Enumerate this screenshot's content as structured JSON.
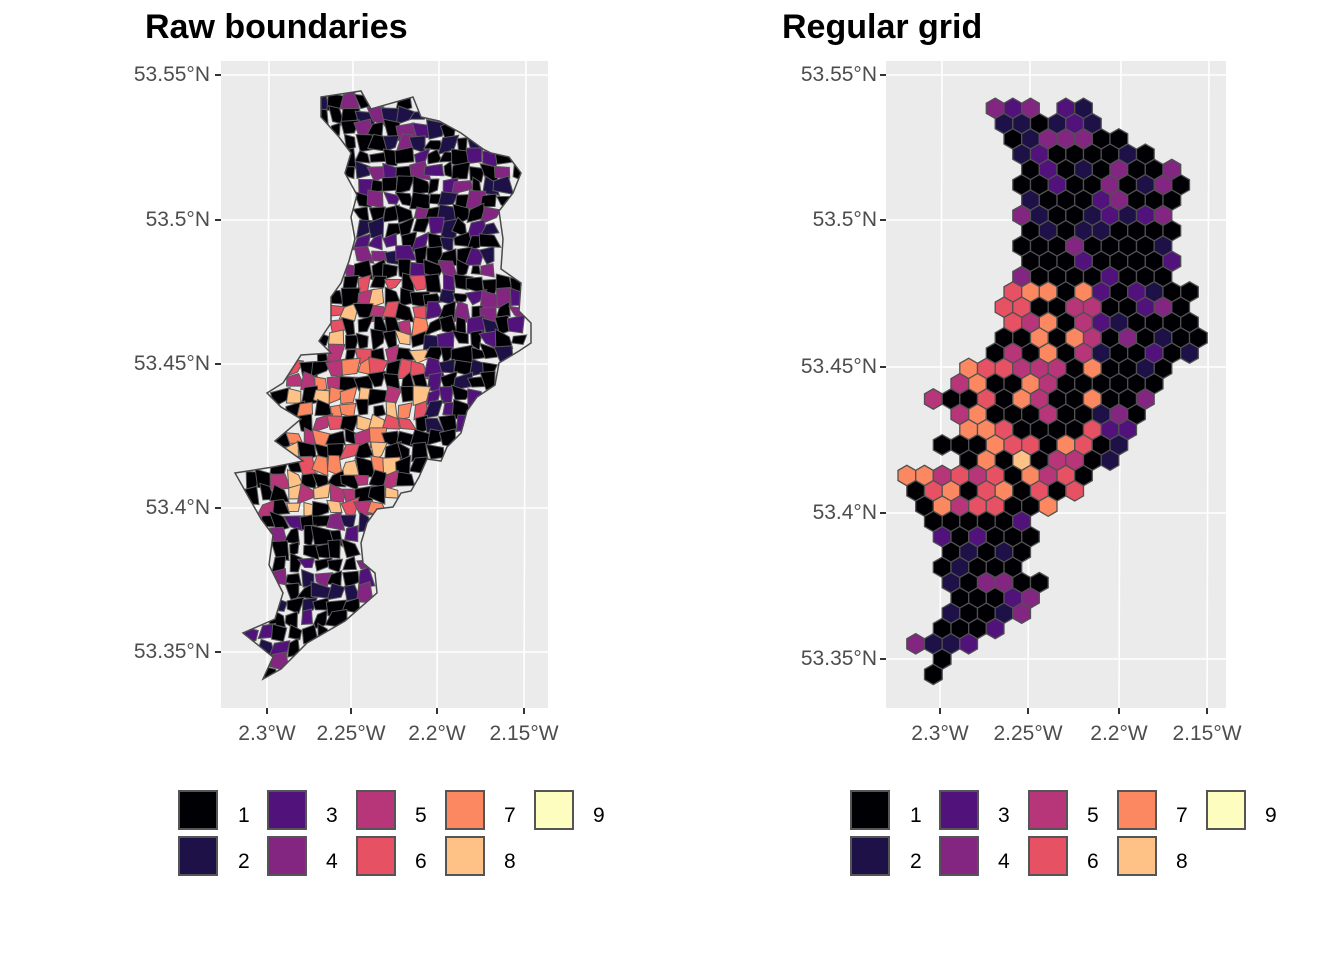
{
  "panels": [
    {
      "title": "Raw boundaries",
      "y_ticks": [
        "53.55°N",
        "53.5°N",
        "53.45°N",
        "53.4°N",
        "53.35°N"
      ],
      "x_ticks": [
        "2.3°W",
        "2.25°W",
        "2.2°W",
        "2.15°W"
      ]
    },
    {
      "title": "Regular grid",
      "y_ticks": [
        "53.55°N",
        "53.5°N",
        "53.45°N",
        "53.4°N",
        "53.35°N"
      ],
      "x_ticks": [
        "2.3°W",
        "2.25°W",
        "2.2°W",
        "2.15°W"
      ]
    }
  ],
  "legend": [
    {
      "label": "1",
      "color": "#000004"
    },
    {
      "label": "2",
      "color": "#1d1147"
    },
    {
      "label": "3",
      "color": "#51127c"
    },
    {
      "label": "4",
      "color": "#822681"
    },
    {
      "label": "5",
      "color": "#b63679"
    },
    {
      "label": "6",
      "color": "#e65164"
    },
    {
      "label": "7",
      "color": "#fb8861"
    },
    {
      "label": "8",
      "color": "#fec287"
    },
    {
      "label": "9",
      "color": "#fcfdbf"
    }
  ]
}
